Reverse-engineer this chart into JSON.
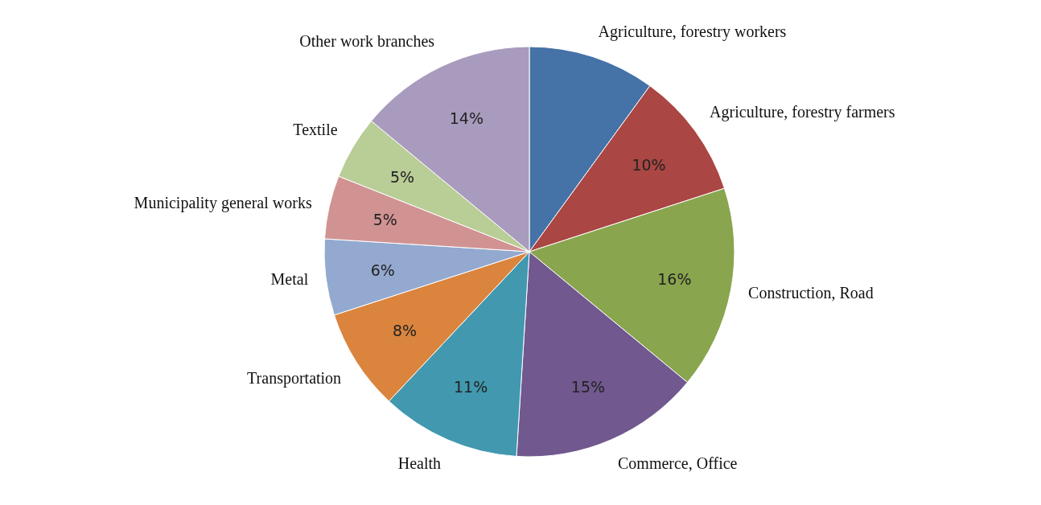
{
  "chart_data": {
    "type": "pie",
    "categories": [
      "Agriculture, forestry workers",
      "Agriculture, forestry farmers",
      "Construction, Road",
      "Commerce, Office",
      "Health",
      "Transportation",
      "Metal",
      "Municipality general works",
      "Textile",
      "Other work branches"
    ],
    "values": [
      10,
      10,
      16,
      15,
      11,
      8,
      6,
      5,
      5,
      14
    ],
    "colors": [
      "#4572a7",
      "#aa4643",
      "#89a54e",
      "#71588f",
      "#4198af",
      "#db843d",
      "#93a9cf",
      "#d19392",
      "#b9cd96",
      "#a99bbd"
    ],
    "value_labels": [
      null,
      "10%",
      "16%",
      "15%",
      "11%",
      "8%",
      "6%",
      "5%",
      "5%",
      "14%"
    ]
  }
}
